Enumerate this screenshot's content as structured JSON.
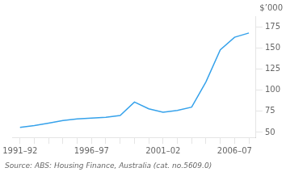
{
  "chart_data": {
    "type": "line",
    "categories": [
      "1991–92",
      null,
      null,
      null,
      null,
      "1996–97",
      null,
      null,
      null,
      null,
      "2001–02",
      null,
      null,
      null,
      null,
      "2006–07",
      null
    ],
    "values": [
      56,
      58,
      61,
      64,
      66,
      67,
      68,
      70,
      86,
      78,
      74,
      76,
      80,
      110,
      148,
      163,
      168
    ],
    "ylim": [
      44,
      188
    ],
    "yticks": [
      50,
      75,
      100,
      125,
      150,
      175
    ],
    "ylabel": "$’000",
    "source": "Source: ABS: Housing Finance, Australia (cat. no.5609.0)",
    "grid": false
  }
}
